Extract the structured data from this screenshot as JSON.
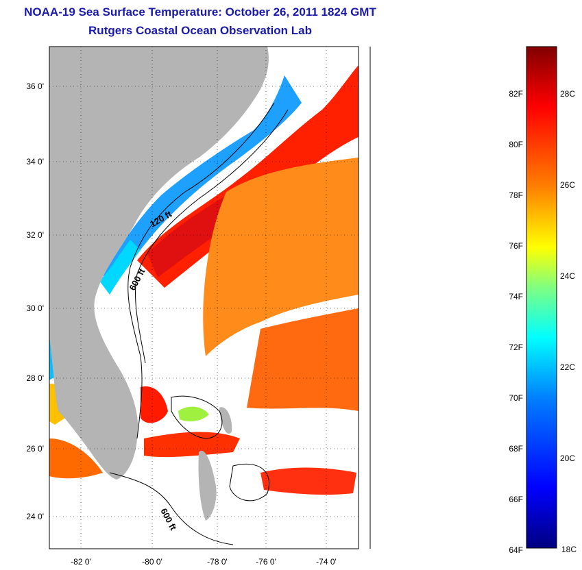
{
  "title": {
    "line1": "NOAA-19 Sea Surface Temperature:  October 26, 2011 1824 GMT",
    "line2": "Rutgers Coastal Ocean Observation Lab"
  },
  "map": {
    "lat_labels": [
      "36 0'",
      "34 0'",
      "32 0'",
      "30 0'",
      "28 0'",
      "26 0'",
      "24 0'"
    ],
    "lon_labels": [
      "-82 0'",
      "-80 0'",
      "-78 0'",
      "-76 0'",
      "-74 0'"
    ],
    "lat_range": [
      23,
      37
    ],
    "lon_range": [
      -83,
      -73
    ],
    "contour_labels": [
      "120 ft",
      "600 ft",
      "600 ft"
    ]
  },
  "colorbar": {
    "f_labels": [
      "82F",
      "80F",
      "78F",
      "76F",
      "74F",
      "72F",
      "70F",
      "68F",
      "66F",
      "64F"
    ],
    "c_labels": [
      "28C",
      "26C",
      "24C",
      "22C",
      "20C",
      "18C"
    ],
    "colors": [
      "#000080",
      "#0000ff",
      "#0080ff",
      "#00ffff",
      "#80ff80",
      "#ffff00",
      "#ff8000",
      "#ff0000",
      "#800000"
    ]
  },
  "colors": {
    "land": "#b4b4b4",
    "title": "#1a1aa8"
  }
}
